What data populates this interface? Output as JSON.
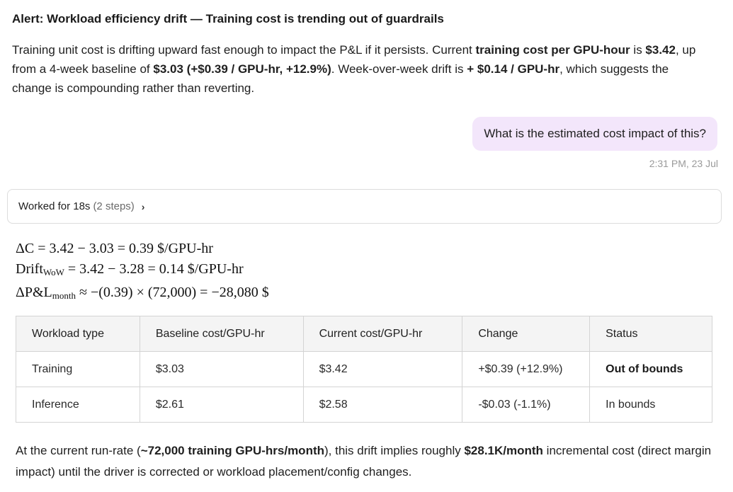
{
  "alert": {
    "title": "Alert: Workload efficiency drift — Training cost is trending out of guardrails",
    "p1": "Training unit cost is drifting upward fast enough to impact the P&L if it persists. Current ",
    "b1": "training cost per GPU-hour",
    "p2": " is ",
    "b2": "$3.42",
    "p3": ", up from a 4-week baseline of ",
    "b3": "$3.03 (+$0.39 / GPU-hr, +12.9%)",
    "p4": ". Week-over-week drift is ",
    "b4": "+ $0.14 / GPU-hr",
    "p5": ", which suggests the change is compounding rather than reverting."
  },
  "message": {
    "text": "What is the estimated cost impact of this?",
    "timestamp": "2:31 PM, 23 Jul"
  },
  "worked": {
    "label": "Worked for 18s",
    "steps": "(2 steps)",
    "chevron": "›"
  },
  "math": {
    "line1": "ΔC = 3.42 − 3.03 = 0.39 $/GPU-hr",
    "line2_main": "Drift",
    "line2_sub": "WoW",
    "line2_rest": " = 3.42 − 3.28 = 0.14 $/GPU-hr",
    "line3_main": "ΔP&L",
    "line3_sub": "month",
    "line3_rest": " ≈ −(0.39) × (72,000) = −28,080 $"
  },
  "table": {
    "headers": [
      "Workload type",
      "Baseline cost/GPU-hr",
      "Current cost/GPU-hr",
      "Change",
      "Status"
    ],
    "rows": [
      [
        "Training",
        "$3.03",
        "$3.42",
        "+$0.39 (+12.9%)",
        "Out of bounds"
      ],
      [
        "Inference",
        "$2.61",
        "$2.58",
        "-$0.03 (-1.1%)",
        "In bounds"
      ]
    ]
  },
  "footer": {
    "p1": "At the current run-rate (",
    "b1": "~72,000 training GPU-hrs/month",
    "p2": "), this drift implies roughly ",
    "b2": "$28.1K/month",
    "p3": " incremental cost (direct margin impact) until the driver is corrected or workload placement/config changes."
  }
}
